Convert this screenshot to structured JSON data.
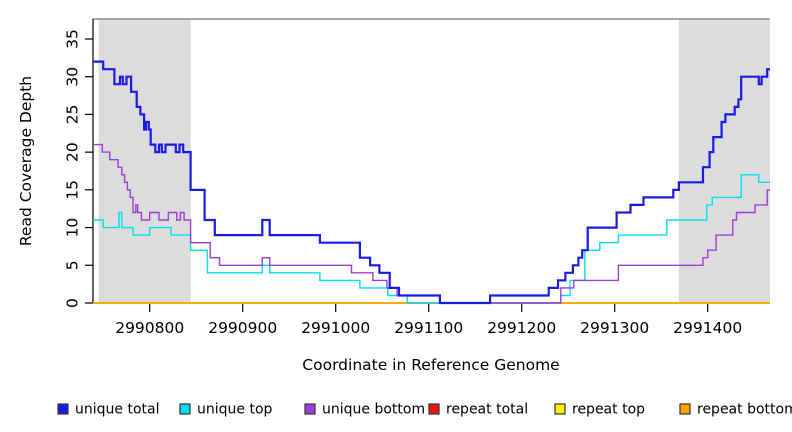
{
  "figure": {
    "xlabel": "Coordinate in Reference Genome",
    "ylabel": "Read Coverage Depth"
  },
  "chart_data": {
    "type": "line",
    "step": true,
    "title": "",
    "xlabel": "Coordinate in Reference Genome",
    "ylabel": "Read Coverage Depth",
    "xlim": [
      2990739,
      2991467
    ],
    "ylim": [
      0,
      37.65
    ],
    "x_ticks": [
      2990800,
      2990900,
      2991000,
      2991100,
      2991200,
      2991300,
      2991400
    ],
    "y_ticks": [
      0,
      5,
      10,
      15,
      20,
      25,
      30,
      35
    ],
    "grid": false,
    "shade_color": "#DCDCDC",
    "top_border_color": "#8A8A8A",
    "axis_color": "#000000",
    "shaded_regions": [
      {
        "from": 2990745,
        "to": 2990844
      },
      {
        "from": 2991369,
        "to": 2991467
      }
    ],
    "legend": [
      {
        "id": "unique_total",
        "label": "unique total",
        "color": "#1A1AE6"
      },
      {
        "id": "unique_top",
        "label": "unique top",
        "color": "#00E0EE"
      },
      {
        "id": "unique_bottom",
        "label": "unique bottom",
        "color": "#9C3FD6"
      },
      {
        "id": "repeat_total",
        "label": "repeat total",
        "color": "#EE1111"
      },
      {
        "id": "repeat_top",
        "label": "repeat top",
        "color": "#FFF200"
      },
      {
        "id": "repeat_bottom",
        "label": "repeat bottom",
        "color": "#FFA500"
      }
    ],
    "series": [
      {
        "id": "repeat_top",
        "label": "repeat top",
        "color": "#FFF200",
        "width": 1.2,
        "points": [
          [
            2990739,
            0
          ],
          [
            2991467,
            0
          ]
        ]
      },
      {
        "id": "repeat_total",
        "label": "repeat total",
        "color": "#EE1111",
        "width": 1.2,
        "points": [
          [
            2990739,
            0
          ],
          [
            2991467,
            0
          ]
        ]
      },
      {
        "id": "repeat_bottom",
        "label": "repeat bottom",
        "color": "#FFA500",
        "width": 1.8,
        "points": [
          [
            2990739,
            0
          ],
          [
            2991467,
            0
          ]
        ]
      },
      {
        "id": "unique_top",
        "label": "unique top",
        "color": "#00E0EE",
        "width": 1.4,
        "points": [
          [
            2990739,
            11
          ],
          [
            2990750,
            10
          ],
          [
            2990767,
            12
          ],
          [
            2990770,
            10
          ],
          [
            2990782,
            9
          ],
          [
            2990800,
            10
          ],
          [
            2990823,
            9
          ],
          [
            2990844,
            7
          ],
          [
            2990862,
            4
          ],
          [
            2990921,
            5
          ],
          [
            2990929,
            4
          ],
          [
            2990983,
            3
          ],
          [
            2991026,
            2
          ],
          [
            2991056,
            1
          ],
          [
            2991077,
            0
          ],
          [
            2991242,
            1
          ],
          [
            2991252,
            3
          ],
          [
            2991268,
            7
          ],
          [
            2991284,
            8
          ],
          [
            2991304,
            9
          ],
          [
            2991356,
            11
          ],
          [
            2991399,
            13
          ],
          [
            2991405,
            14
          ],
          [
            2991436,
            17
          ],
          [
            2991455,
            16
          ],
          [
            2991467,
            16
          ]
        ]
      },
      {
        "id": "unique_bottom",
        "label": "unique bottom",
        "color": "#9C3FD6",
        "width": 1.4,
        "points": [
          [
            2990739,
            21
          ],
          [
            2990749,
            20
          ],
          [
            2990757,
            19
          ],
          [
            2990766,
            18
          ],
          [
            2990770,
            17
          ],
          [
            2990773,
            16
          ],
          [
            2990776,
            15
          ],
          [
            2990779,
            14
          ],
          [
            2990782,
            12
          ],
          [
            2990785,
            13
          ],
          [
            2990787,
            12
          ],
          [
            2990791,
            11
          ],
          [
            2990800,
            12
          ],
          [
            2990810,
            11
          ],
          [
            2990820,
            12
          ],
          [
            2990829,
            11
          ],
          [
            2990833,
            12
          ],
          [
            2990837,
            11
          ],
          [
            2990844,
            8
          ],
          [
            2990865,
            6
          ],
          [
            2990875,
            5
          ],
          [
            2990921,
            6
          ],
          [
            2990929,
            5
          ],
          [
            2991017,
            4
          ],
          [
            2991040,
            3
          ],
          [
            2991055,
            2
          ],
          [
            2991066,
            1
          ],
          [
            2991112,
            0
          ],
          [
            2991242,
            2
          ],
          [
            2991256,
            3
          ],
          [
            2991304,
            5
          ],
          [
            2991395,
            6
          ],
          [
            2991400,
            7
          ],
          [
            2991409,
            9
          ],
          [
            2991427,
            11
          ],
          [
            2991431,
            12
          ],
          [
            2991451,
            13
          ],
          [
            2991464,
            15
          ],
          [
            2991467,
            15
          ]
        ]
      },
      {
        "id": "unique_total",
        "label": "unique total",
        "color": "#1A1AE6",
        "width": 2.2,
        "points": [
          [
            2990739,
            32
          ],
          [
            2990750,
            31
          ],
          [
            2990762,
            29
          ],
          [
            2990768,
            30
          ],
          [
            2990771,
            29
          ],
          [
            2990775,
            30
          ],
          [
            2990780,
            28
          ],
          [
            2990786,
            26
          ],
          [
            2990790,
            25
          ],
          [
            2990794,
            23
          ],
          [
            2990796,
            24
          ],
          [
            2990799,
            23
          ],
          [
            2990801,
            21
          ],
          [
            2990806,
            20
          ],
          [
            2990810,
            21
          ],
          [
            2990813,
            20
          ],
          [
            2990817,
            21
          ],
          [
            2990828,
            20
          ],
          [
            2990832,
            21
          ],
          [
            2990836,
            20
          ],
          [
            2990844,
            15
          ],
          [
            2990859,
            11
          ],
          [
            2990870,
            9
          ],
          [
            2990921,
            11
          ],
          [
            2990929,
            9
          ],
          [
            2990983,
            8
          ],
          [
            2991026,
            6
          ],
          [
            2991037,
            5
          ],
          [
            2991047,
            4
          ],
          [
            2991058,
            2
          ],
          [
            2991068,
            1
          ],
          [
            2991112,
            0
          ],
          [
            2991166,
            1
          ],
          [
            2991229,
            2
          ],
          [
            2991239,
            3
          ],
          [
            2991247,
            4
          ],
          [
            2991255,
            5
          ],
          [
            2991261,
            6
          ],
          [
            2991265,
            7
          ],
          [
            2991271,
            10
          ],
          [
            2991302,
            12
          ],
          [
            2991317,
            13
          ],
          [
            2991331,
            14
          ],
          [
            2991363,
            15
          ],
          [
            2991369,
            16
          ],
          [
            2991395,
            18
          ],
          [
            2991402,
            20
          ],
          [
            2991406,
            22
          ],
          [
            2991415,
            24
          ],
          [
            2991419,
            25
          ],
          [
            2991429,
            26
          ],
          [
            2991433,
            27
          ],
          [
            2991436,
            30
          ],
          [
            2991455,
            29
          ],
          [
            2991458,
            30
          ],
          [
            2991464,
            31
          ],
          [
            2991467,
            31
          ]
        ]
      }
    ]
  }
}
